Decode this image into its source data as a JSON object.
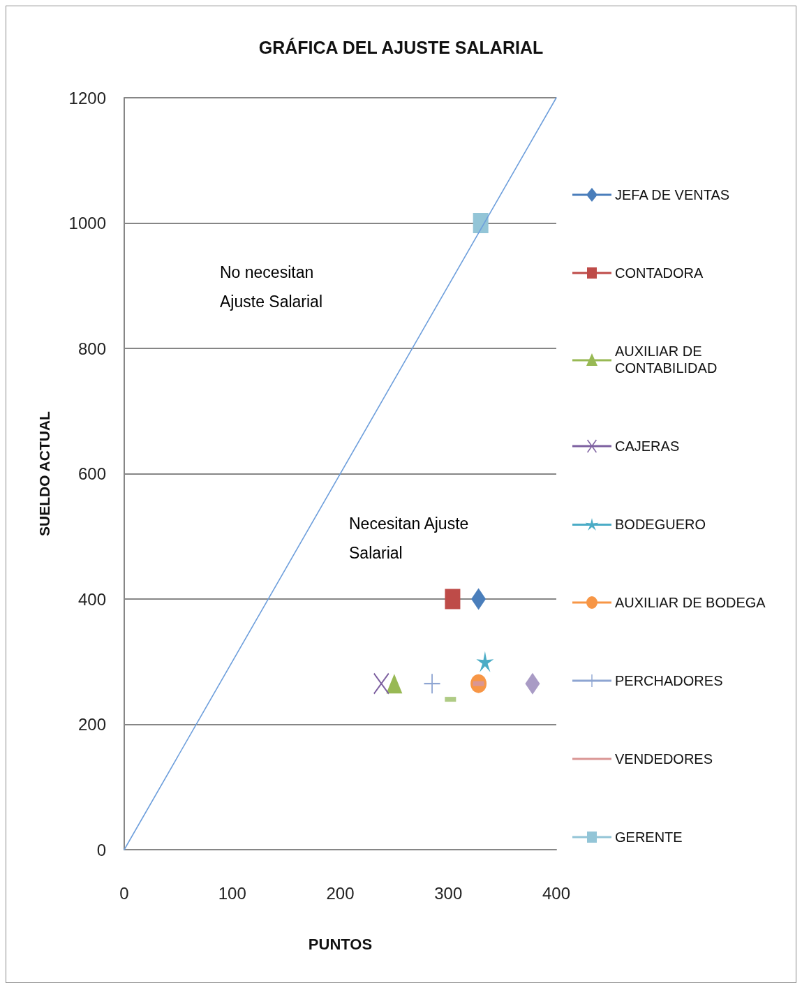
{
  "chart_data": {
    "type": "scatter",
    "title": "GRÁFICA DEL AJUSTE SALARIAL",
    "xlabel": "PUNTOS",
    "ylabel": "SUELDO ACTUAL",
    "annotations": [
      "No necesitan\nAjuste Salarial",
      "Necesitan Ajuste\nSalarial"
    ],
    "xlim": [
      0,
      400
    ],
    "xticks": [
      0,
      100,
      200,
      300,
      400
    ],
    "ylim": [
      0,
      1200
    ],
    "yticks": [
      0,
      200,
      400,
      600,
      800,
      1000,
      1200
    ],
    "grid": "y",
    "legend": "right",
    "series": [
      {
        "name": "JEFA DE VENTAS",
        "color": "#4a7ebb",
        "marker": "diamond",
        "x": [
          328
        ],
        "values": [
          400
        ]
      },
      {
        "name": "CONTADORA",
        "color": "#be4b48",
        "marker": "square",
        "x": [
          304
        ],
        "values": [
          400
        ]
      },
      {
        "name": "AUXILIAR DE CONTABILIDAD",
        "color": "#98b954",
        "marker": "triangle",
        "x": [
          250
        ],
        "values": [
          265
        ]
      },
      {
        "name": "CAJERAS",
        "color": "#7d60a0",
        "marker": "x",
        "x": [
          238
        ],
        "values": [
          265
        ]
      },
      {
        "name": "BODEGUERO",
        "color": "#4bacc6",
        "marker": "star",
        "x": [
          334
        ],
        "values": [
          300
        ]
      },
      {
        "name": "AUXILIAR DE BODEGA",
        "color": "#f79646",
        "marker": "circle",
        "x": [
          328
        ],
        "values": [
          265
        ]
      },
      {
        "name": "PERCHADORES",
        "color": "#8ea5d2",
        "marker": "cross",
        "x": [
          285
        ],
        "values": [
          265
        ]
      },
      {
        "name": "VENDEDORES",
        "color": "#d99694",
        "x": [
          328
        ],
        "values": [
          265
        ]
      },
      {
        "name": "GERENTE",
        "color": "#93c5d7",
        "marker": "square",
        "x": [
          330
        ],
        "values": [
          1000
        ]
      },
      {
        "color": "#afcb85",
        "x": [
          302
        ],
        "values": [
          240
        ]
      },
      {
        "color": "#a99bc5",
        "marker": "diamond",
        "x": [
          378
        ],
        "values": [
          265
        ]
      },
      {
        "type": "line",
        "color": "#6e9fdc",
        "marker": "none",
        "x": [
          0,
          400
        ],
        "values": [
          0,
          1200
        ]
      }
    ]
  }
}
